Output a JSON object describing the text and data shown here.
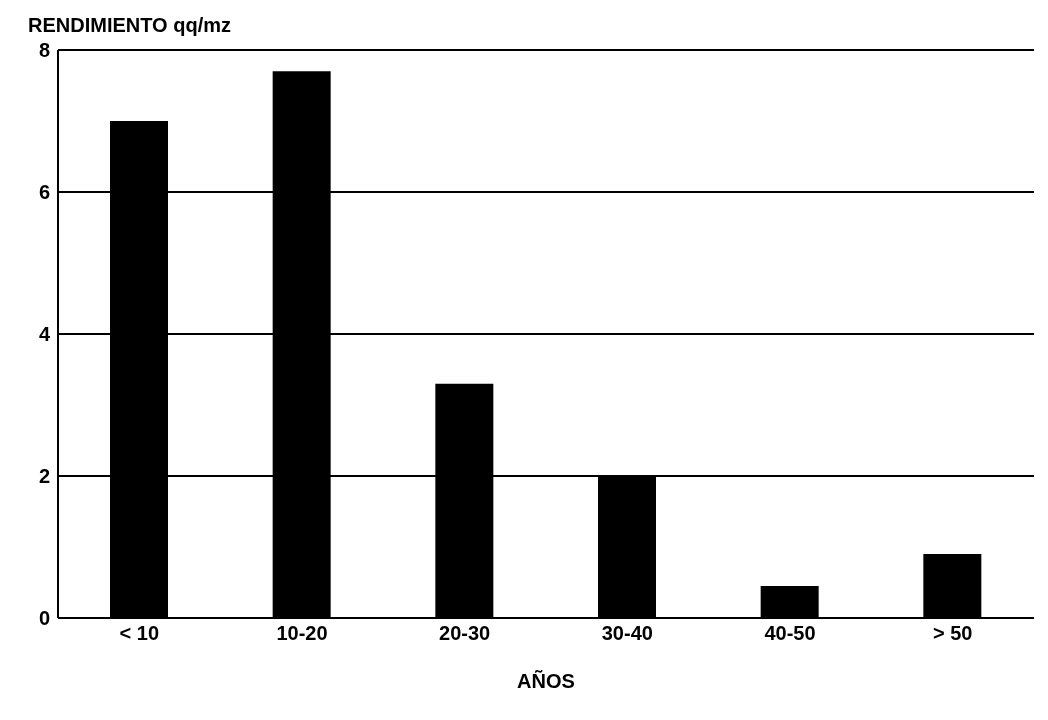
{
  "chart_data": {
    "type": "bar",
    "xlabel": "AÑOS",
    "ylabel": "RENDIMIENTO qq/mz",
    "categories": [
      "< 10",
      "10-20",
      "20-30",
      "30-40",
      "40-50",
      "> 50"
    ],
    "values": [
      7.0,
      7.7,
      3.3,
      2.0,
      0.45,
      0.9
    ],
    "color": "#000000",
    "ylim": [
      0,
      8
    ],
    "yticks": [
      0,
      2,
      4,
      6,
      8
    ],
    "grid": "y"
  }
}
